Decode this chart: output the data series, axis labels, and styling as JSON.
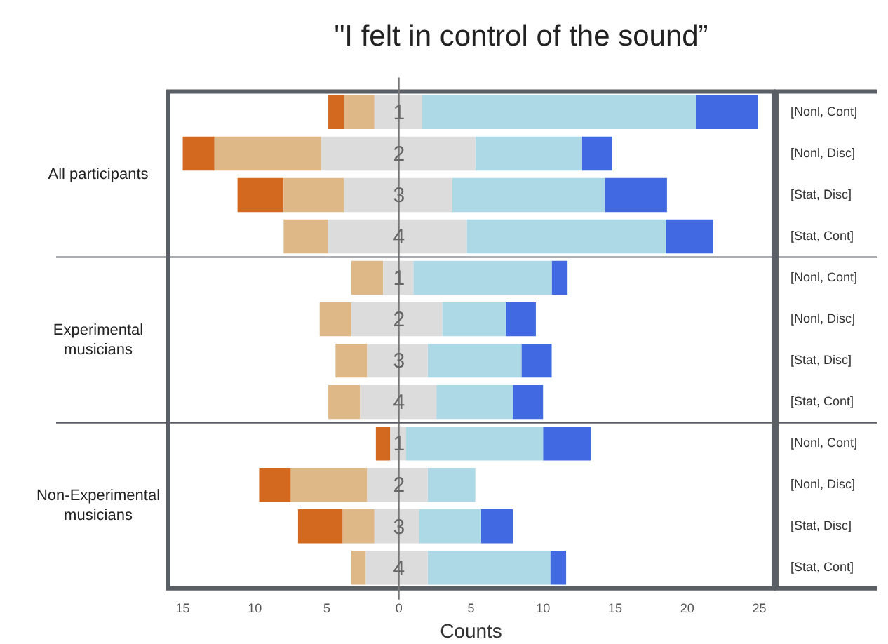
{
  "chart_data": {
    "type": "bar",
    "orientation": "horizontal",
    "stacked": true,
    "title": "\"I felt in control of the sound”",
    "xlabel": "Counts",
    "categories": [
      "[Nonl, Cont]",
      "[Nonl, Disc]",
      "[Stat, Disc]",
      "[Stat, Cont]",
      "[Nonl, Cont]",
      "[Nonl, Disc]",
      "[Stat, Disc]",
      "[Stat, Cont]",
      "[Nonl, Cont]",
      "[Nonl, Disc]",
      "[Stat, Disc]",
      "[Stat, Cont]"
    ],
    "series": [
      {
        "color": "#dcdcdc",
        "values": [
          -1.7,
          -5.4,
          -3.8,
          -4.9,
          -1.1,
          -3.3,
          -2.2,
          -2.7,
          -0.6,
          -2.2,
          -1.7,
          -2.3
        ]
      },
      {
        "color": "#dcdcdc",
        "values": [
          1.6,
          5.3,
          3.7,
          4.7,
          1,
          3,
          2,
          2.6,
          0.5,
          2,
          1.4,
          2
        ]
      },
      {
        "color": "#deb887",
        "values": [
          -2.1,
          -7.4,
          -4.2,
          -3.1,
          -2.2,
          -2.2,
          -2.2,
          -2.2,
          null,
          -5.3,
          -2.2,
          -1
        ]
      },
      {
        "color": "#d2691e",
        "values": [
          -1.1,
          -2.2,
          -3.2,
          null,
          null,
          null,
          null,
          null,
          -1,
          -2.2,
          -3.1,
          null
        ]
      },
      {
        "color": "#add8e6",
        "values": [
          19,
          7.4,
          10.6,
          13.8,
          9.6,
          4.4,
          6.5,
          5.3,
          9.5,
          3.3,
          4.3,
          8.5
        ]
      },
      {
        "color": "#4169e1",
        "values": [
          4.3,
          2.1,
          4.3,
          3.3,
          1.1,
          2.1,
          2.1,
          2.1,
          3.3,
          null,
          2.2,
          1.1
        ]
      }
    ],
    "xlim": [
      -16,
      26
    ],
    "xticks": [
      {
        "value": -15,
        "label": "15"
      },
      {
        "value": -10,
        "label": "10"
      },
      {
        "value": -5,
        "label": "5"
      },
      0,
      5,
      10,
      15,
      20,
      25
    ],
    "annotations": [
      "1",
      "2",
      "3",
      "4",
      "1",
      "2",
      "3",
      "4",
      "1",
      "2",
      "3",
      "4",
      "All participants",
      "Experimental musicians",
      "Non-Experimental musicians"
    ],
    "grid": false,
    "legend": false
  }
}
